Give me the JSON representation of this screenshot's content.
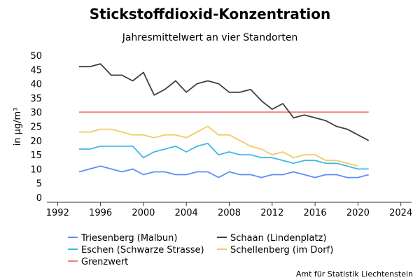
{
  "chart_data": {
    "type": "line",
    "title": "Stickstoffdioxid-Konzentration",
    "subtitle": "Jahresmittelwert an vier Standorten",
    "xlabel": "",
    "ylabel": "in µg/m³",
    "xlim": [
      1991,
      2025
    ],
    "ylim": [
      0,
      50
    ],
    "x_ticks": [
      1992,
      1996,
      2000,
      2004,
      2008,
      2012,
      2016,
      2020,
      2024
    ],
    "y_ticks": [
      0,
      5,
      10,
      15,
      20,
      25,
      30,
      35,
      40,
      45,
      50
    ],
    "grid": false,
    "legend_position": "bottom",
    "x": [
      1994,
      1995,
      1996,
      1997,
      1998,
      1999,
      2000,
      2001,
      2002,
      2003,
      2004,
      2005,
      2006,
      2007,
      2008,
      2009,
      2010,
      2011,
      2012,
      2013,
      2014,
      2015,
      2016,
      2017,
      2018,
      2019,
      2020,
      2021
    ],
    "series": [
      {
        "name": "Triesenberg (Malbun)",
        "color": "#5b8ff9",
        "values": [
          9,
          10,
          11,
          10,
          9,
          10,
          8,
          9,
          9,
          8,
          8,
          9,
          9,
          7,
          9,
          8,
          8,
          7,
          8,
          8,
          9,
          8,
          7,
          8,
          8,
          7,
          7,
          8
        ]
      },
      {
        "name": "Schaan (Lindenplatz)",
        "color": "#404040",
        "values": [
          46,
          46,
          47,
          43,
          43,
          41,
          44,
          36,
          38,
          41,
          37,
          40,
          41,
          40,
          37,
          37,
          38,
          34,
          31,
          33,
          28,
          29,
          28,
          27,
          25,
          24,
          22,
          20
        ]
      },
      {
        "name": "Eschen (Schwarze Strasse)",
        "color": "#3fb8e8",
        "values": [
          17,
          17,
          18,
          18,
          18,
          18,
          14,
          16,
          17,
          18,
          16,
          18,
          19,
          15,
          16,
          15,
          15,
          14,
          14,
          13,
          12,
          13,
          13,
          12,
          12,
          11,
          10,
          10
        ]
      },
      {
        "name": "Schellenberg (im Dorf)",
        "color": "#f5c965",
        "values": [
          23,
          23,
          24,
          24,
          23,
          22,
          22,
          21,
          22,
          22,
          21,
          23,
          25,
          22,
          22,
          20,
          18,
          17,
          15,
          16,
          14,
          15,
          15,
          13,
          13,
          12,
          11,
          null
        ]
      },
      {
        "name": "Grenzwert",
        "color": "#f08080",
        "values": [
          30,
          30,
          30,
          30,
          30,
          30,
          30,
          30,
          30,
          30,
          30,
          30,
          30,
          30,
          30,
          30,
          30,
          30,
          30,
          30,
          30,
          30,
          30,
          30,
          30,
          30,
          30,
          30
        ]
      }
    ],
    "source": "Amt für Statistik Liechtenstein"
  }
}
